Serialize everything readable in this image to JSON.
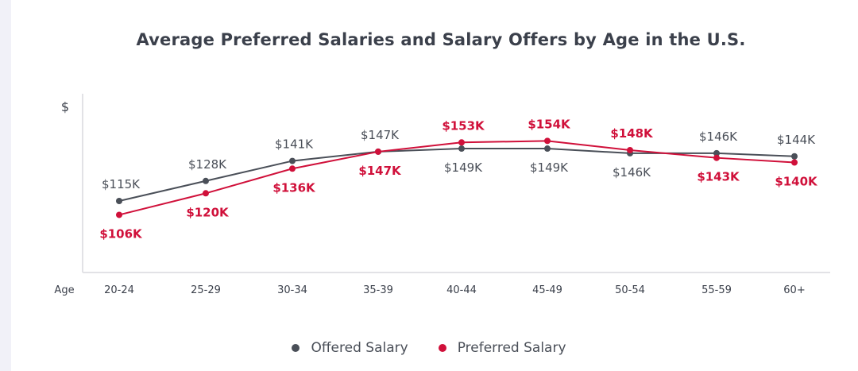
{
  "chart_data": {
    "type": "line",
    "title": "Average Preferred Salaries and Salary Offers by Age in the U.S.",
    "xlabel": "Age",
    "ylabel": "$",
    "categories": [
      "20-24",
      "25-29",
      "30-34",
      "35-39",
      "40-44",
      "45-49",
      "50-54",
      "55-59",
      "60+"
    ],
    "ylim": [
      68.6,
      184.6
    ],
    "grid": false,
    "legend_position": "bottom-center",
    "series": [
      {
        "name": "Offered Salary",
        "color": "#4a4f58",
        "values": [
          115,
          128,
          141,
          147,
          149,
          149,
          146,
          146,
          144
        ],
        "labels": [
          "$115K",
          "$128K",
          "$141K",
          "$147K",
          "$149K",
          "$149K",
          "$146K",
          "$146K",
          "$144K"
        ]
      },
      {
        "name": "Preferred Salary",
        "color": "#d0103a",
        "values": [
          106,
          120,
          136,
          147,
          153,
          154,
          148,
          143,
          140
        ],
        "labels": [
          "$106K",
          "$120K",
          "$136K",
          "$147K",
          "$153K",
          "$154K",
          "$148K",
          "$143K",
          "$140K"
        ]
      }
    ]
  }
}
